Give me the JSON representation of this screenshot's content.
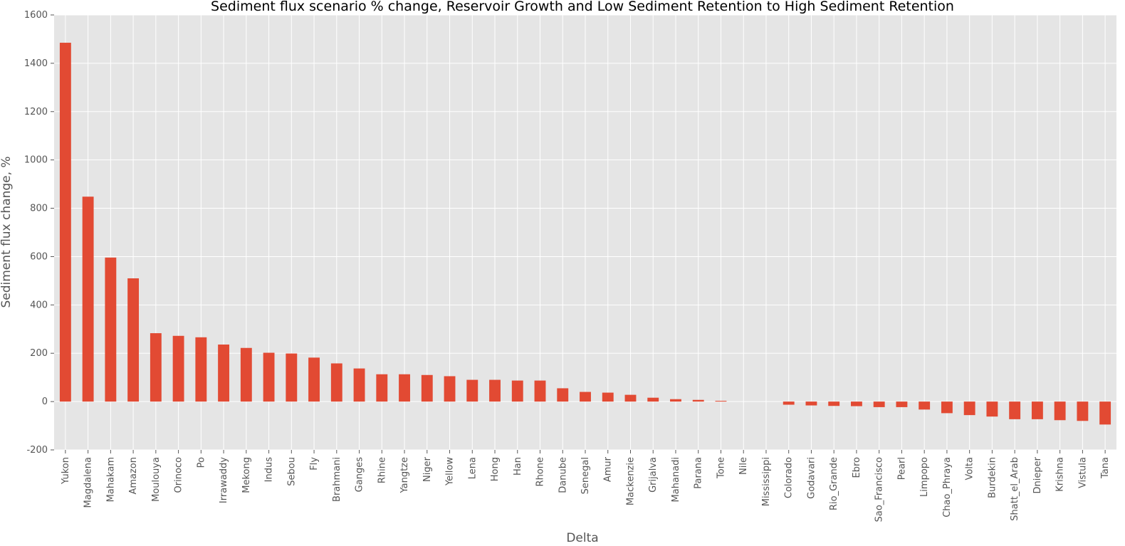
{
  "chart_data": {
    "type": "bar",
    "title": "Sediment flux scenario % change, Reservoir Growth and Low Sediment Retention to High Sediment Retention",
    "xlabel": "Delta",
    "ylabel": "Sediment flux change, %",
    "ylim": [
      -200,
      1600
    ],
    "yticks": [
      -200,
      0,
      200,
      400,
      600,
      800,
      1000,
      1200,
      1400,
      1600
    ],
    "grid": true,
    "legend": "none",
    "bar_color": "#e24a33",
    "background_color": "#e5e5e5",
    "grid_color": "#ffffff",
    "categories": [
      "Yukon",
      "Magdalena",
      "Mahakam",
      "Amazon",
      "Moulouya",
      "Orinoco",
      "Po",
      "Irrawaddy",
      "Mekong",
      "Indus",
      "Sebou",
      "Fly",
      "Brahmani",
      "Ganges",
      "Rhine",
      "Yangtze",
      "Niger",
      "Yellow",
      "Lena",
      "Hong",
      "Han",
      "Rhone",
      "Danube",
      "Senegal",
      "Amur",
      "Mackenzie",
      "Grijalva",
      "Mahanadi",
      "Parana",
      "Tone",
      "Nile",
      "Mississippi",
      "Colorado",
      "Godavari",
      "Rio_Grande",
      "Ebro",
      "Sao_Francisco",
      "Pearl",
      "Limpopo",
      "Chao_Phraya",
      "Volta",
      "Burdekin",
      "Shatt_el_Arab",
      "Dnieper",
      "Krishna",
      "Vistula",
      "Tana"
    ],
    "values": [
      1485,
      848,
      596,
      510,
      283,
      272,
      266,
      236,
      222,
      202,
      199,
      182,
      158,
      137,
      113,
      113,
      110,
      105,
      90,
      90,
      87,
      87,
      55,
      40,
      37,
      28,
      16,
      10,
      7,
      3,
      0,
      0,
      -13,
      -16,
      -18,
      -19,
      -23,
      -23,
      -33,
      -48,
      -56,
      -62,
      -73,
      -73,
      -77,
      -80,
      -95
    ]
  }
}
